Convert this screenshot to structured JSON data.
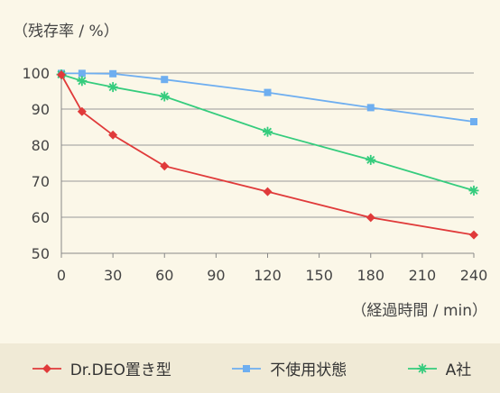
{
  "chart_data": {
    "type": "line",
    "ylabel": "（残存率 / %）",
    "xlabel": "（経過時間 / min）",
    "x_ticks": [
      0,
      30,
      60,
      90,
      120,
      150,
      180,
      210,
      240
    ],
    "y_ticks": [
      50,
      60,
      70,
      80,
      90,
      100
    ],
    "xlim": [
      0,
      240
    ],
    "ylim": [
      50,
      100
    ],
    "grid": "horizontal",
    "legend_position": "bottom",
    "series": [
      {
        "name": "Dr.DEO置き型",
        "color": "#e03a3a",
        "marker": "diamond",
        "x": [
          0,
          12,
          30,
          60,
          120,
          180,
          240
        ],
        "y": [
          99.5,
          89.3,
          82.8,
          74.2,
          67.1,
          59.9,
          55.1
        ]
      },
      {
        "name": "不使用状態",
        "color": "#6eaef0",
        "marker": "square",
        "x": [
          0,
          12,
          30,
          60,
          120,
          180,
          240
        ],
        "y": [
          99.9,
          99.9,
          99.8,
          98.2,
          94.6,
          90.4,
          86.5
        ]
      },
      {
        "name": "A社",
        "color": "#35cc7d",
        "marker": "asterisk",
        "x": [
          0,
          12,
          30,
          60,
          120,
          180,
          240
        ],
        "y": [
          99.6,
          97.8,
          96.1,
          93.5,
          83.7,
          75.9,
          67.4
        ]
      }
    ]
  }
}
